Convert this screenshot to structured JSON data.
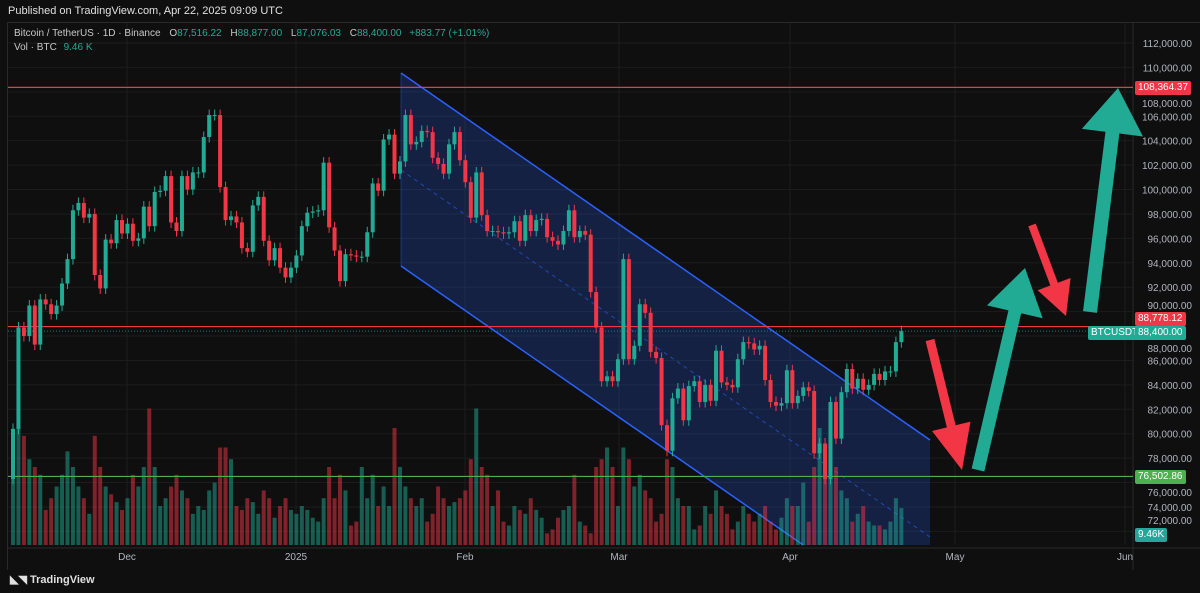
{
  "published": "Published on TradingView.com, Apr 22, 2025 09:09 UTC",
  "legend": {
    "symbol": "Bitcoin / TetherUS · 1D · Binance",
    "o_label": "O",
    "o": "87,516.22",
    "h_label": "H",
    "h": "88,877.00",
    "l_label": "L",
    "l": "87,076.03",
    "c_label": "C",
    "c": "88,400.00",
    "change": "+883.77 (+1.01%)",
    "vol_label": "Vol · BTC",
    "vol": "9.46 K"
  },
  "footer": {
    "brand": "TradingView"
  },
  "colors": {
    "up": "#22ab94",
    "down": "#f23645",
    "channel": "#2962ff",
    "support": "#4caf50",
    "resistance": "#f23645"
  },
  "chart_data": {
    "type": "candlestick",
    "start_date": "2024-11-10",
    "interval": "1D",
    "closes": [
      80400,
      88700,
      88000,
      90500,
      87300,
      91000,
      90600,
      89800,
      90500,
      92300,
      94300,
      98300,
      98900,
      97700,
      98000,
      93000,
      91900,
      95900,
      95600,
      97500,
      96400,
      97200,
      95800,
      96000,
      98600,
      97000,
      99800,
      99900,
      101100,
      97300,
      96600,
      101100,
      100000,
      101400,
      101400,
      104300,
      106100,
      106100,
      100200,
      97500,
      97800,
      97300,
      95200,
      94900,
      98700,
      99400,
      95800,
      94200,
      95200,
      93600,
      92800,
      93600,
      94600,
      97000,
      98100,
      98200,
      98300,
      102200,
      96900,
      95000,
      92500,
      94700,
      94600,
      94500,
      94500,
      96500,
      100500,
      99900,
      104100,
      104500,
      101300,
      102300,
      106100,
      103700,
      103900,
      104800,
      104700,
      102600,
      102100,
      101300,
      103700,
      104700,
      102400,
      100600,
      97700,
      101400,
      97900,
      96600,
      96600,
      96500,
      96400,
      96500,
      97400,
      95800,
      97900,
      96600,
      97500,
      97600,
      96100,
      95800,
      95500,
      96600,
      98300,
      96100,
      96600,
      96300,
      91600,
      88700,
      84300,
      84700,
      84300,
      86100,
      94300,
      86100,
      87200,
      90600,
      89900,
      86700,
      86200,
      80700,
      78600,
      82900,
      83700,
      81100,
      83900,
      84300,
      82600,
      84000,
      82700,
      86800,
      84200,
      84000,
      83800,
      86100,
      87500,
      87400,
      86900,
      87200,
      84400,
      82600,
      82300,
      82500,
      85200,
      82500,
      83100,
      83800,
      83500,
      78400,
      79200,
      76300,
      82600,
      79600,
      83400,
      85300,
      83700,
      84500,
      83600,
      84000,
      84900,
      84400,
      85100,
      85100,
      87500,
      88400
    ],
    "first_open": 76300,
    "volumes_k": [
      25,
      30,
      28,
      22,
      20,
      18,
      9,
      12,
      15,
      18,
      24,
      20,
      15,
      12,
      8,
      28,
      20,
      15,
      13,
      11,
      9,
      12,
      18,
      15,
      20,
      35,
      20,
      10,
      12,
      15,
      18,
      14,
      12,
      8,
      10,
      9,
      14,
      16,
      25,
      25,
      22,
      10,
      9,
      12,
      11,
      8,
      14,
      12,
      7,
      10,
      12,
      9,
      8,
      10,
      9,
      7,
      6,
      12,
      20,
      12,
      18,
      14,
      5,
      6,
      20,
      12,
      18,
      10,
      15,
      10,
      30,
      20,
      15,
      12,
      10,
      12,
      6,
      8,
      15,
      12,
      10,
      11,
      12,
      14,
      22,
      35,
      20,
      18,
      10,
      14,
      6,
      5,
      10,
      9,
      8,
      12,
      9,
      7,
      3,
      4,
      7,
      9,
      10,
      18,
      6,
      5,
      3,
      20,
      22,
      25,
      20,
      10,
      25,
      22,
      15,
      18,
      14,
      12,
      6,
      8,
      22,
      20,
      12,
      10,
      10,
      4,
      5,
      10,
      8,
      14,
      10,
      8,
      4,
      6,
      10,
      8,
      6,
      8,
      10,
      6,
      4,
      7,
      12,
      10,
      10,
      16,
      6,
      20,
      30,
      25,
      35,
      20,
      14,
      12,
      6,
      8,
      10,
      6,
      5,
      5,
      4,
      6,
      12,
      9.46
    ],
    "y_ticks": [
      "112,000.00",
      "110,000.00",
      "108,000.00",
      "106,000.00",
      "104,000.00",
      "102,000.00",
      "100,000.00",
      "98,000.00",
      "96,000.00",
      "94,000.00",
      "92,000.00",
      "90,000.00",
      "88,000.00",
      "86,000.00",
      "84,000.00",
      "82,000.00",
      "80,000.00",
      "78,000.00",
      "76,000.00",
      "74,000.00",
      "72,000.00"
    ],
    "x_ticks": [
      "Dec",
      "2025",
      "Feb",
      "Mar",
      "Apr",
      "May",
      "Jun"
    ],
    "ylim": [
      71000,
      113000
    ],
    "levels": [
      {
        "value": 108364.37,
        "label": "108,364.37",
        "color": "#f23645"
      },
      {
        "value": 88778.12,
        "label": "88,778.12",
        "color": "#f23645"
      },
      {
        "value": 76502.86,
        "label": "76,502.86",
        "color": "#4caf50"
      }
    ],
    "last_price": {
      "symbol": "BTCUSDT",
      "label": "88,400.00"
    },
    "last_volume_label": "9.46K"
  }
}
